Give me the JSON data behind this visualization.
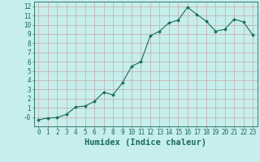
{
  "x": [
    0,
    1,
    2,
    3,
    4,
    5,
    6,
    7,
    8,
    9,
    10,
    11,
    12,
    13,
    14,
    15,
    16,
    17,
    18,
    19,
    20,
    21,
    22,
    23
  ],
  "y": [
    -0.3,
    -0.1,
    -0.05,
    0.3,
    1.1,
    1.2,
    1.7,
    2.7,
    2.4,
    3.7,
    5.5,
    6.0,
    8.8,
    9.3,
    10.2,
    10.5,
    11.9,
    11.1,
    10.4,
    9.3,
    9.5,
    10.6,
    10.3,
    8.9
  ],
  "line_color": "#1a6b5a",
  "marker": "D",
  "marker_size": 2.0,
  "bg_color": "#c5eeec",
  "grid_major_color": "#c8a8a8",
  "grid_minor_color": "#d8c0c0",
  "xlabel": "Humidex (Indice chaleur)",
  "xlim": [
    -0.5,
    23.5
  ],
  "ylim": [
    -1.0,
    12.5
  ],
  "yticks": [
    0,
    1,
    2,
    3,
    4,
    5,
    6,
    7,
    8,
    9,
    10,
    11,
    12
  ],
  "ytick_labels": [
    "-0",
    "1",
    "2",
    "3",
    "4",
    "5",
    "6",
    "7",
    "8",
    "9",
    "10",
    "11",
    "12"
  ],
  "xticks": [
    0,
    1,
    2,
    3,
    4,
    5,
    6,
    7,
    8,
    9,
    10,
    11,
    12,
    13,
    14,
    15,
    16,
    17,
    18,
    19,
    20,
    21,
    22,
    23
  ],
  "font_color": "#1a6b5a",
  "tick_fontsize": 5.5,
  "label_fontsize": 7.5,
  "linewidth": 0.8
}
